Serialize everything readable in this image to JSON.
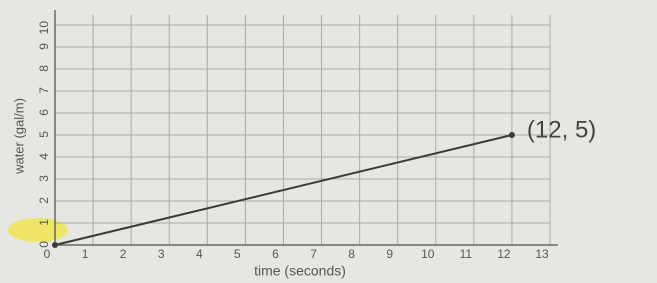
{
  "chart_data": {
    "type": "line",
    "xlabel": "time (seconds)",
    "ylabel": "water (gal/m)",
    "x": [
      0,
      12
    ],
    "series": [
      {
        "color": "#3a3a3a",
        "values": [
          0,
          5
        ]
      }
    ],
    "xlim": [
      0,
      13
    ],
    "ylim": [
      0,
      10
    ],
    "xticks": [
      0,
      1,
      2,
      3,
      4,
      5,
      6,
      7,
      8,
      9,
      10,
      11,
      12,
      13
    ],
    "yticks": [
      0,
      1,
      2,
      3,
      4,
      5,
      6,
      7,
      8,
      9,
      10
    ],
    "grid": true,
    "annotations": [
      {
        "text": "(12, 5)"
      }
    ]
  }
}
